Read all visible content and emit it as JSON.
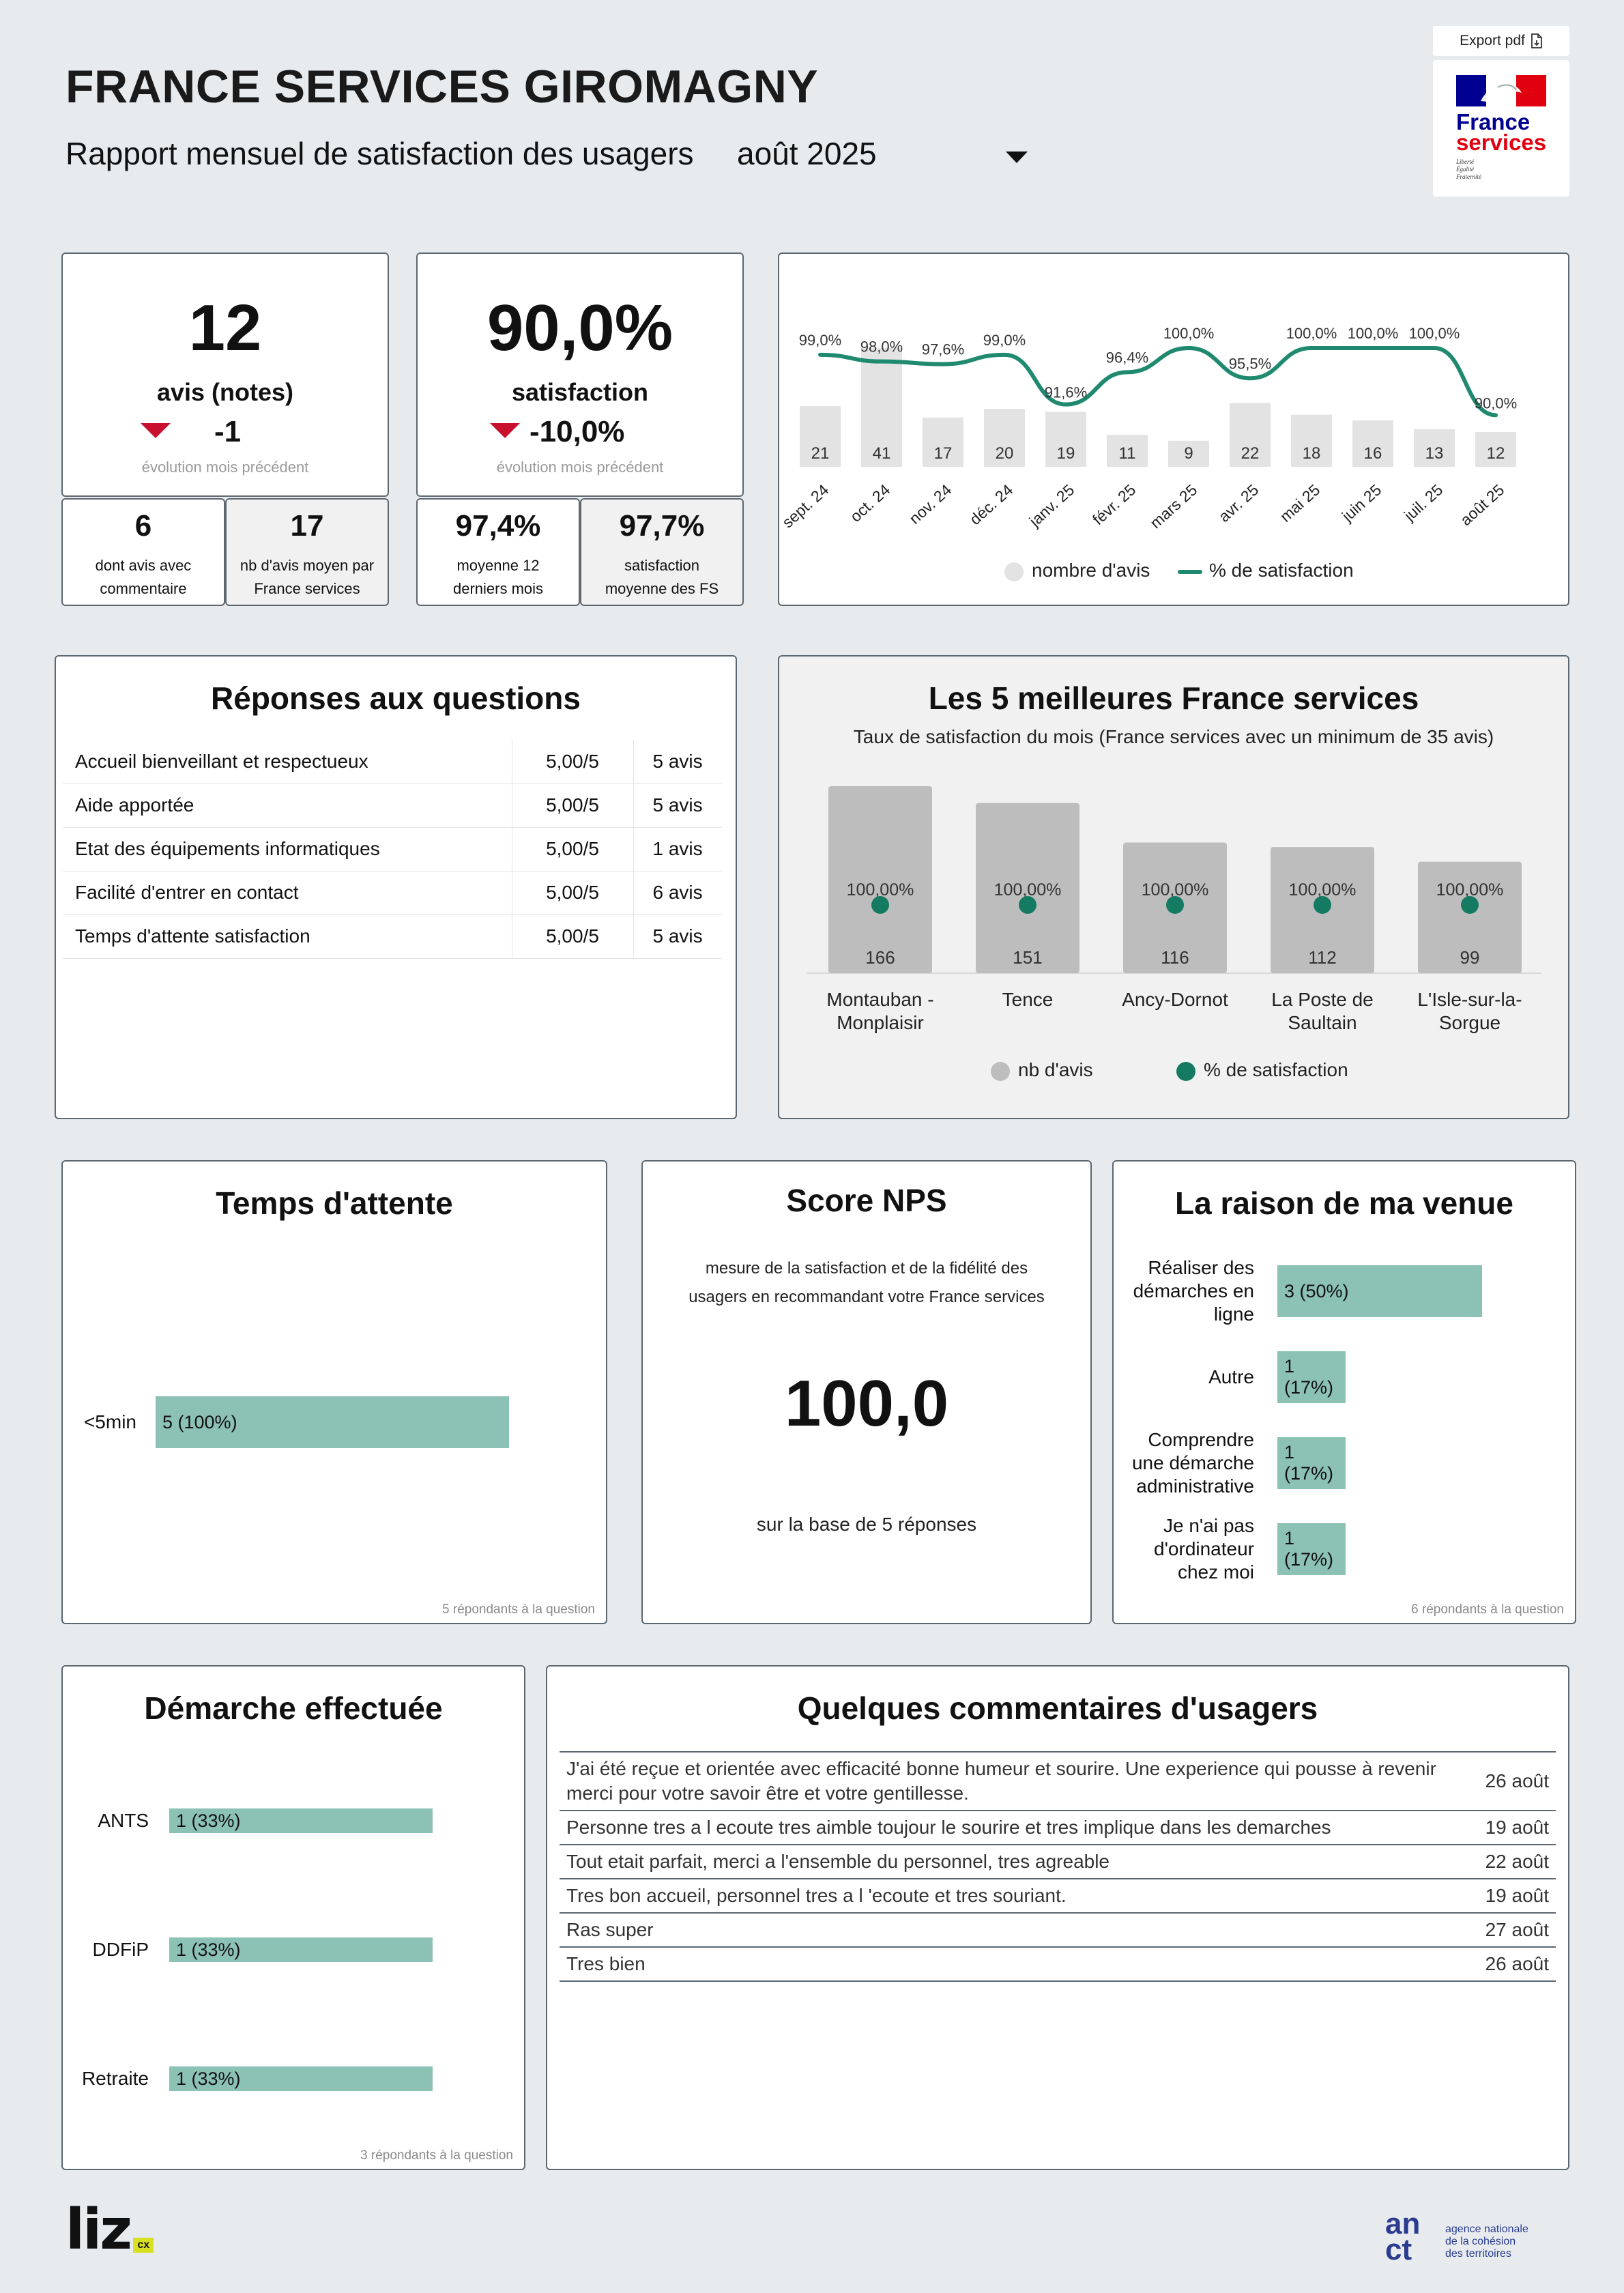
{
  "header": {
    "title": "FRANCE SERVICES GIROMAGNY",
    "subtitle": "Rapport mensuel de satisfaction des usagers",
    "month": "août 2025",
    "export_label": "Export pdf",
    "logo_line1": "France",
    "logo_line2": "services",
    "logo_motto": [
      "Liberté",
      "Égalité",
      "Fraternité"
    ]
  },
  "kpi_avis": {
    "value": "12",
    "label": "avis (notes)",
    "delta": "-1",
    "delta_caption": "évolution mois précédent"
  },
  "kpi_satisfaction": {
    "value": "90,0%",
    "label": "satisfaction",
    "delta": "-10,0%",
    "delta_caption": "évolution mois précédent"
  },
  "small_kpis": [
    {
      "value": "6",
      "label": "dont avis avec commentaire"
    },
    {
      "value": "17",
      "label": "nb d'avis moyen par France services"
    },
    {
      "value": "97,4%",
      "label": "moyenne 12 derniers mois"
    },
    {
      "value": "97,7%",
      "label": "satisfaction moyenne des FS"
    }
  ],
  "chart_data": [
    {
      "type": "bar",
      "categories": [
        "sept. 24",
        "oct. 24",
        "nov. 24",
        "déc. 24",
        "janv. 25",
        "févr. 25",
        "mars 25",
        "avr. 25",
        "mai 25",
        "juin 25",
        "juil. 25",
        "août 25"
      ],
      "series": [
        {
          "name": "nombre d'avis",
          "type": "bar",
          "values": [
            21,
            41,
            17,
            20,
            19,
            11,
            9,
            22,
            18,
            16,
            13,
            12
          ],
          "labels": [
            "21",
            "41",
            "17",
            "20",
            "19",
            "11",
            "9",
            "22",
            "18",
            "16",
            "13",
            "12"
          ]
        },
        {
          "name": "% de satisfaction",
          "type": "line",
          "values": [
            99.0,
            98.0,
            97.6,
            99.0,
            91.6,
            96.4,
            100.0,
            95.5,
            100.0,
            100.0,
            100.0,
            90.0
          ],
          "labels": [
            "99,0%",
            "98,0%",
            "97,6%",
            "99,0%",
            "91,6%",
            "96,4%",
            "100,0%",
            "95,5%",
            "100,0%",
            "100,0%",
            "100,0%",
            "90,0%"
          ]
        }
      ],
      "legend": [
        "nombre d'avis",
        "% de satisfaction"
      ],
      "colors": {
        "bars": "#e3e3e3",
        "line": "#1f8a70"
      }
    },
    {
      "type": "bar",
      "title": "Les 5 meilleures France services",
      "subtitle": "Taux de satisfaction du mois (France services avec un minimum de 35 avis)",
      "categories": [
        "Montauban - Monplaisir",
        "Tence",
        "Ancy-Dornot",
        "La Poste de Saultain",
        "L'Isle-sur-la-Sorgue"
      ],
      "category_lines": [
        [
          "Montauban -",
          "Monplaisir"
        ],
        [
          "Tence"
        ],
        [
          "Ancy-Dornot"
        ],
        [
          "La Poste de",
          "Saultain"
        ],
        [
          "L'Isle-sur-la-",
          "Sorgue"
        ]
      ],
      "series": [
        {
          "name": "nb d'avis",
          "type": "bar",
          "values": [
            166,
            151,
            116,
            112,
            99
          ],
          "labels": [
            "166",
            "151",
            "116",
            "112",
            "99"
          ]
        },
        {
          "name": "% de satisfaction",
          "type": "scatter",
          "values": [
            100.0,
            100.0,
            100.0,
            100.0,
            100.0
          ],
          "labels": [
            "100,00%",
            "100,00%",
            "100,00%",
            "100,00%",
            "100,00%"
          ]
        }
      ],
      "legend": [
        "nb d'avis",
        "% de satisfaction"
      ],
      "colors": {
        "bars": "#bdbdbd",
        "dots": "#157a62"
      }
    },
    {
      "type": "bar",
      "orientation": "horizontal",
      "title": "Temps d'attente",
      "categories": [
        "<5min"
      ],
      "values": [
        5
      ],
      "value_labels": [
        "5 (100%)"
      ],
      "note": "5 répondants à la question"
    },
    {
      "type": "bar",
      "orientation": "horizontal",
      "title": "La raison de ma venue",
      "categories": [
        "Réaliser des démarches en ligne",
        "Autre",
        "Comprendre une démarche administrative",
        "Je n'ai pas d'ordinateur chez moi"
      ],
      "category_lines": [
        [
          "Réaliser des",
          "démarches en",
          "ligne"
        ],
        [
          "Autre"
        ],
        [
          "Comprendre",
          "une démarche",
          "administrative"
        ],
        [
          "Je n'ai pas",
          "d'ordinateur",
          "chez moi"
        ]
      ],
      "values": [
        3,
        1,
        1,
        1
      ],
      "value_labels": [
        "3 (50%)",
        "1 (17%)",
        "1 (17%)",
        "1 (17%)"
      ],
      "note": "6 répondants à la question"
    },
    {
      "type": "bar",
      "orientation": "horizontal",
      "title": "Démarche effectuée",
      "categories": [
        "ANTS",
        "DDFiP",
        "Retraite"
      ],
      "values": [
        1,
        1,
        1
      ],
      "value_labels": [
        "1 (33%)",
        "1 (33%)",
        "1 (33%)"
      ],
      "note": "3 répondants à la question"
    }
  ],
  "questions": {
    "title": "Réponses aux questions",
    "rows": [
      {
        "q": "Accueil bienveillant et respectueux",
        "score": "5,00/5",
        "count": "5 avis"
      },
      {
        "q": "Aide apportée",
        "score": "5,00/5",
        "count": "5 avis"
      },
      {
        "q": "Etat des équipements informatiques",
        "score": "5,00/5",
        "count": "1 avis"
      },
      {
        "q": "Facilité d'entrer en contact",
        "score": "5,00/5",
        "count": "6 avis"
      },
      {
        "q": "Temps d'attente satisfaction",
        "score": "5,00/5",
        "count": "5 avis"
      }
    ]
  },
  "nps": {
    "title": "Score NPS",
    "desc_line1": "mesure de la satisfaction et de la fidélité des",
    "desc_line2": "usagers en recommandant votre France services",
    "value": "100,0",
    "base": "sur la base de 5 réponses"
  },
  "comments": {
    "title": "Quelques commentaires d'usagers",
    "rows": [
      {
        "text": "J'ai été reçue et orientée avec efficacité bonne humeur et sourire. Une experience qui pousse à revenir merci pour votre savoir être et votre gentillesse.",
        "date": "26 août"
      },
      {
        "text": "Personne tres a l ecoute tres aimble toujour le sourire et tres implique dans les demarches",
        "date": "19 août"
      },
      {
        "text": "Tout etait parfait, merci a l'ensemble du personnel, tres agreable",
        "date": "22 août"
      },
      {
        "text": "Tres bon accueil, personnel tres a l 'ecoute et tres souriant.",
        "date": "19 août"
      },
      {
        "text": "Ras super",
        "date": "27 août"
      },
      {
        "text": "Tres bien",
        "date": "26 août"
      }
    ]
  },
  "footer": {
    "liz_logo": "liz",
    "liz_badge": "cx",
    "anct_logo": "an ct",
    "anct_text": [
      "agence nationale",
      "de la cohésion",
      "des territoires"
    ]
  }
}
